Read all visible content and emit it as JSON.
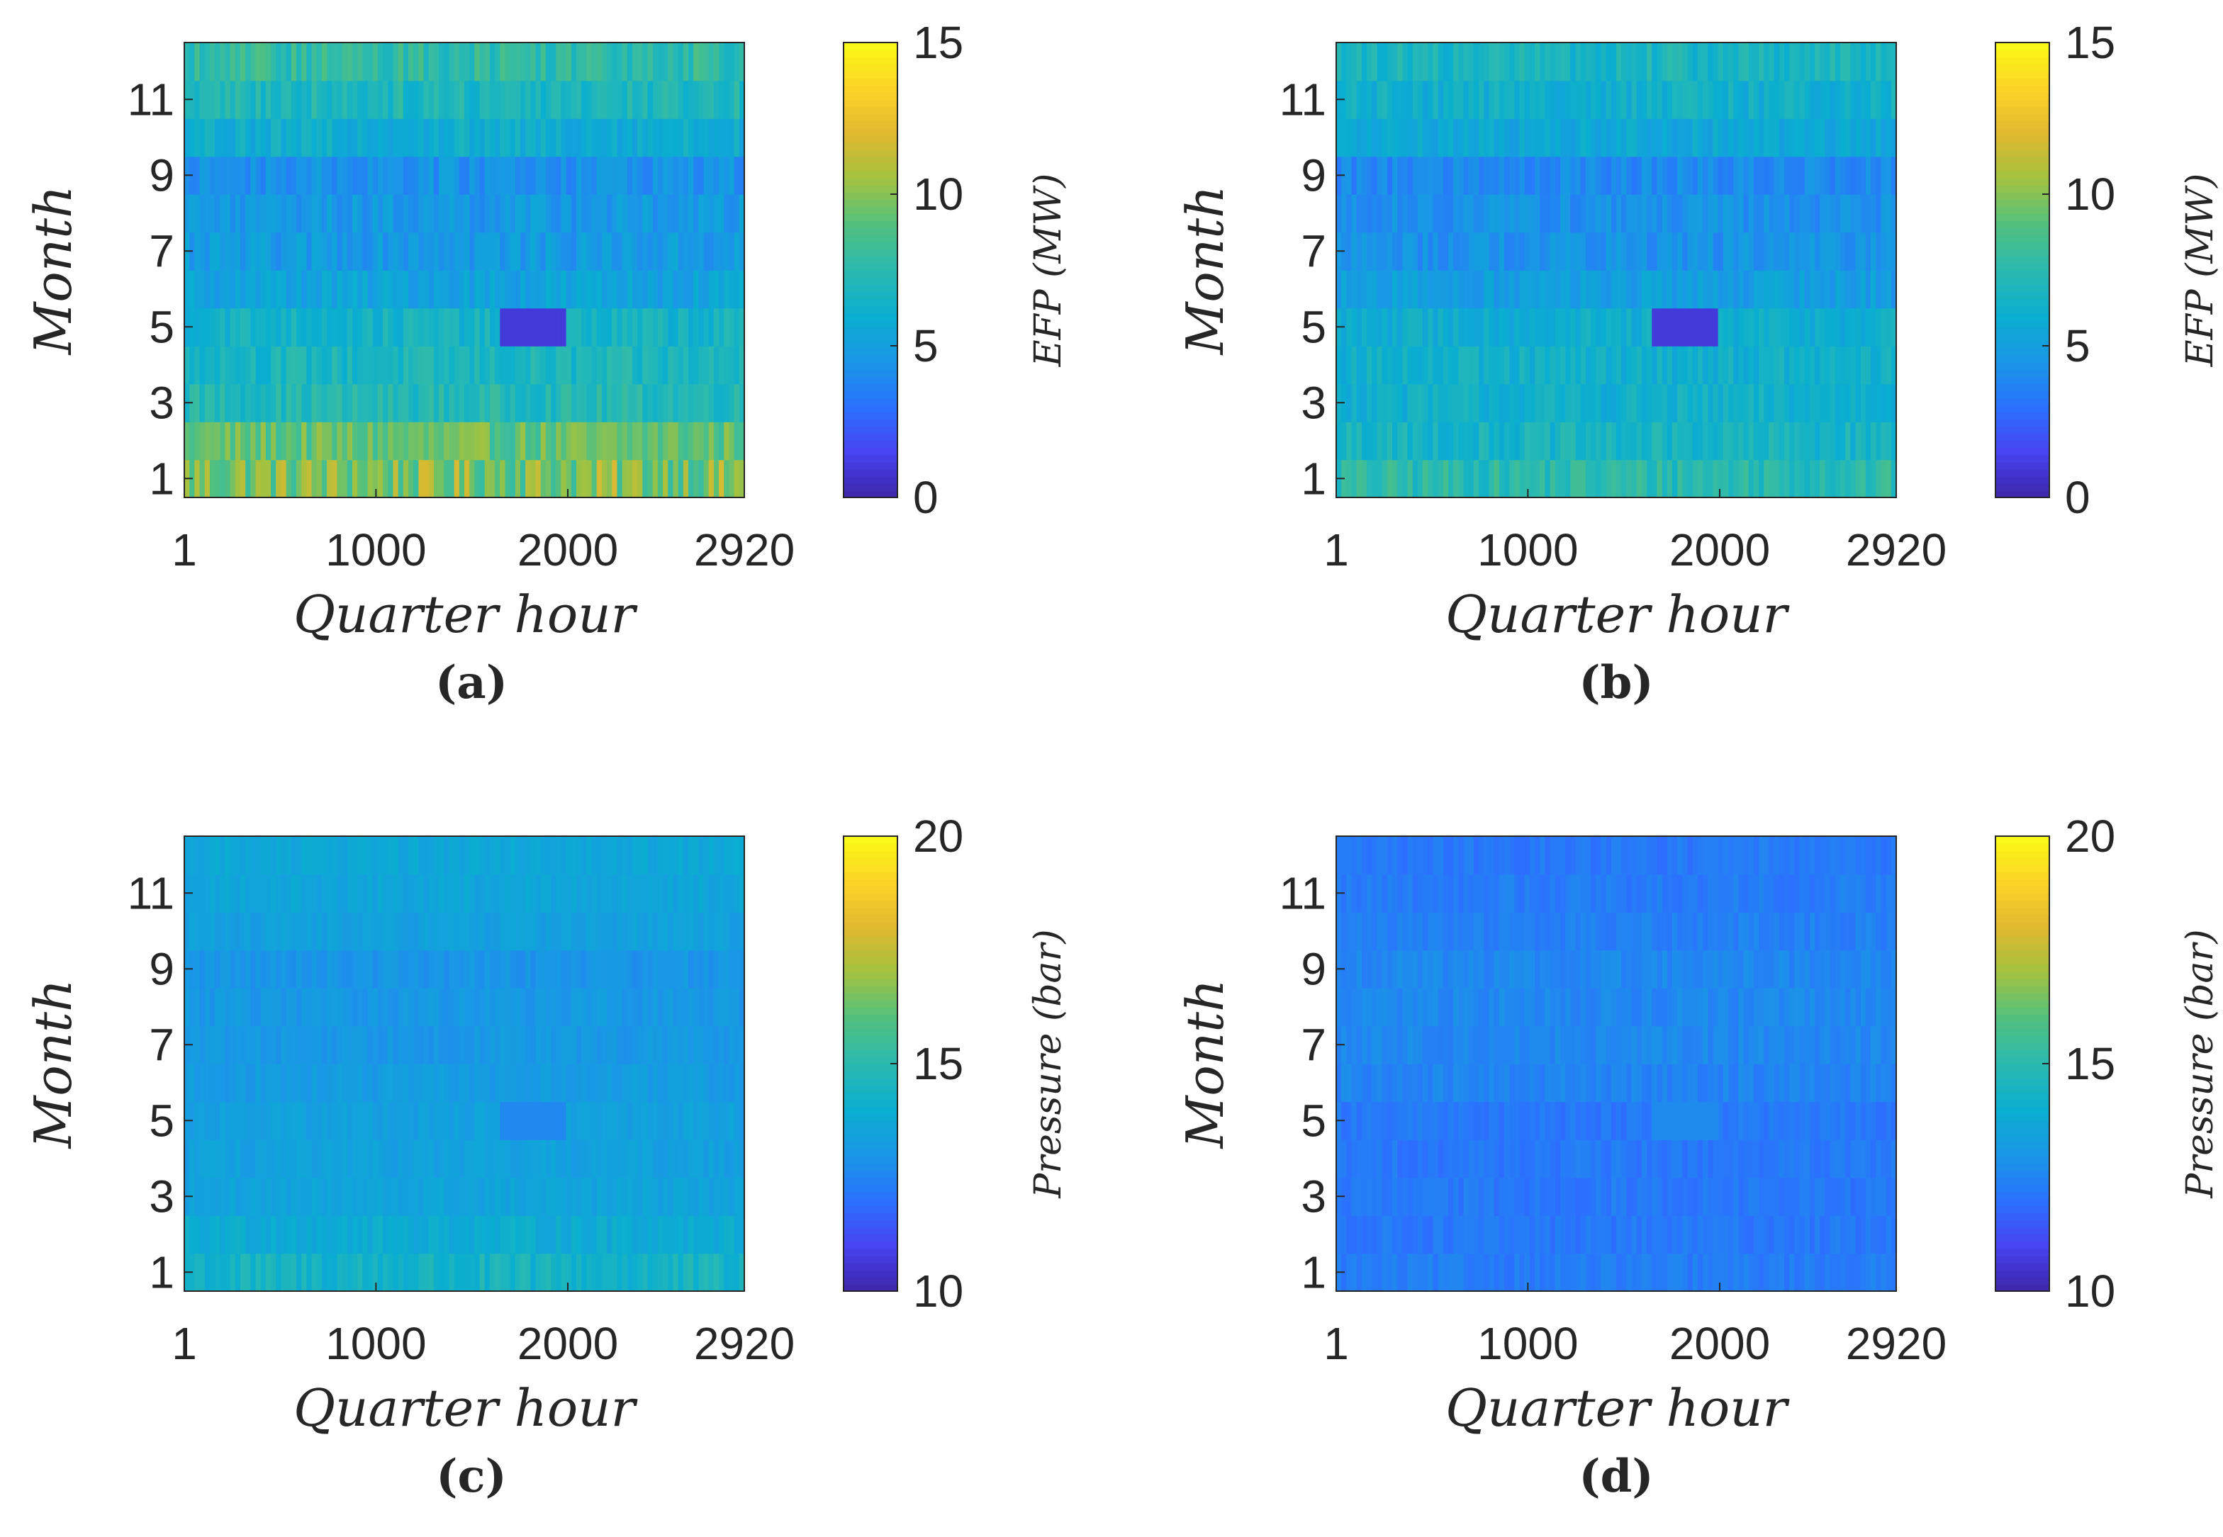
{
  "chart_data": [
    {
      "id": "a",
      "type": "heatmap",
      "panel_label": "(a)",
      "xlabel": "Quarter hour",
      "ylabel": "Month",
      "x_range": [
        1,
        2920
      ],
      "y_range": [
        1,
        12
      ],
      "xticks": [
        1,
        1000,
        2000,
        2920
      ],
      "xtick_labels": [
        "1",
        "1000",
        "2000",
        "2920"
      ],
      "yticks": [
        1,
        3,
        5,
        7,
        9,
        11
      ],
      "ytick_labels": [
        "1",
        "3",
        "5",
        "7",
        "9",
        "11"
      ],
      "colorbar": {
        "label": "EFP (MW)",
        "min": 0,
        "max": 15,
        "ticks": [
          0,
          5,
          10,
          15
        ],
        "tick_labels": [
          "0",
          "5",
          "10",
          "15"
        ]
      },
      "monthly_mean": [
        9.8,
        9.2,
        7.2,
        6.8,
        6.5,
        5.3,
        4.8,
        4.7,
        4.4,
        6.0,
        7.0,
        7.8
      ],
      "monthly_variation": [
        2.0,
        1.3,
        0.9,
        0.9,
        0.9,
        0.9,
        0.9,
        0.9,
        0.9,
        0.9,
        1.0,
        1.2
      ],
      "anomaly": {
        "month": 5,
        "x_start": 1650,
        "x_end": 2000,
        "value": 1.0
      }
    },
    {
      "id": "b",
      "type": "heatmap",
      "panel_label": "(b)",
      "xlabel": "Quarter hour",
      "ylabel": "Month",
      "x_range": [
        1,
        2920
      ],
      "y_range": [
        1,
        12
      ],
      "xticks": [
        1,
        1000,
        2000,
        2920
      ],
      "xtick_labels": [
        "1",
        "1000",
        "2000",
        "2920"
      ],
      "yticks": [
        1,
        3,
        5,
        7,
        9,
        11
      ],
      "ytick_labels": [
        "1",
        "3",
        "5",
        "7",
        "9",
        "11"
      ],
      "colorbar": {
        "label": "EFP (MW)",
        "min": 0,
        "max": 15,
        "ticks": [
          0,
          5,
          10,
          15
        ],
        "tick_labels": [
          "0",
          "5",
          "10",
          "15"
        ]
      },
      "monthly_mean": [
        7.5,
        6.6,
        6.2,
        6.2,
        6.0,
        5.0,
        4.4,
        4.3,
        4.0,
        5.6,
        6.2,
        6.7
      ],
      "monthly_variation": [
        1.1,
        0.9,
        0.8,
        0.8,
        0.8,
        0.8,
        0.8,
        0.8,
        0.8,
        0.8,
        0.9,
        1.0
      ],
      "anomaly": {
        "month": 5,
        "x_start": 1650,
        "x_end": 2000,
        "value": 1.0
      }
    },
    {
      "id": "c",
      "type": "heatmap",
      "panel_label": "(c)",
      "xlabel": "Quarter hour",
      "ylabel": "Month",
      "x_range": [
        1,
        2920
      ],
      "y_range": [
        1,
        12
      ],
      "xticks": [
        1,
        1000,
        2000,
        2920
      ],
      "xtick_labels": [
        "1",
        "1000",
        "2000",
        "2920"
      ],
      "yticks": [
        1,
        3,
        5,
        7,
        9,
        11
      ],
      "ytick_labels": [
        "1",
        "3",
        "5",
        "7",
        "9",
        "11"
      ],
      "colorbar": {
        "label": "Pressure (bar)",
        "min": 10,
        "max": 20,
        "ticks": [
          10,
          15,
          20
        ],
        "tick_labels": [
          "10",
          "15",
          "20"
        ]
      },
      "monthly_mean": [
        14.3,
        13.9,
        13.5,
        13.4,
        13.4,
        13.2,
        13.1,
        13.1,
        13.0,
        13.4,
        13.6,
        13.7
      ],
      "monthly_variation": [
        0.6,
        0.4,
        0.3,
        0.3,
        0.3,
        0.3,
        0.3,
        0.3,
        0.3,
        0.3,
        0.3,
        0.3
      ],
      "anomaly": {
        "month": 5,
        "x_start": 1650,
        "x_end": 2000,
        "value": 12.6
      }
    },
    {
      "id": "d",
      "type": "heatmap",
      "panel_label": "(d)",
      "xlabel": "Quarter hour",
      "ylabel": "Month",
      "x_range": [
        1,
        2920
      ],
      "y_range": [
        1,
        12
      ],
      "xticks": [
        1,
        1000,
        2000,
        2920
      ],
      "xtick_labels": [
        "1",
        "1000",
        "2000",
        "2920"
      ],
      "yticks": [
        1,
        3,
        5,
        7,
        9,
        11
      ],
      "ytick_labels": [
        "1",
        "3",
        "5",
        "7",
        "9",
        "11"
      ],
      "colorbar": {
        "label": "Pressure (bar)",
        "min": 10,
        "max": 20,
        "ticks": [
          10,
          15,
          20
        ],
        "tick_labels": [
          "10",
          "15",
          "20"
        ]
      },
      "monthly_mean": [
        12.3,
        12.2,
        12.2,
        12.2,
        12.2,
        12.5,
        12.6,
        12.6,
        12.6,
        12.4,
        12.3,
        12.2
      ],
      "monthly_variation": [
        0.3,
        0.3,
        0.3,
        0.3,
        0.3,
        0.3,
        0.3,
        0.3,
        0.3,
        0.3,
        0.3,
        0.3
      ],
      "anomaly": {
        "month": 5,
        "x_start": 1650,
        "x_end": 2000,
        "value": 12.7
      }
    }
  ],
  "colormap": [
    "#3e26a8",
    "#4743f2",
    "#2b71fe",
    "#1a97e6",
    "#0aaed0",
    "#2bbab0",
    "#52c07f",
    "#a1c241",
    "#e0b92f",
    "#fdd327",
    "#f9fb15"
  ]
}
